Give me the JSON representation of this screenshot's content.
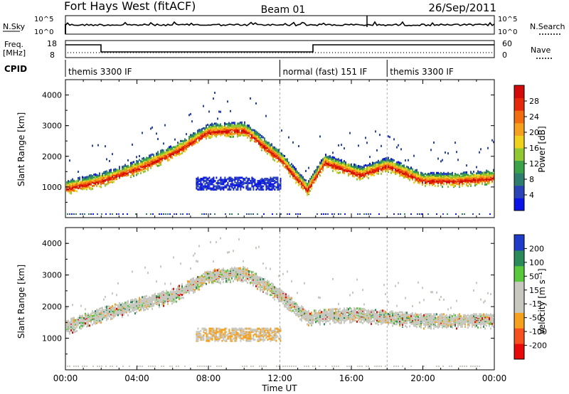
{
  "header": {
    "station": "Fort Hays West (fitACF)",
    "beam": "Beam 01",
    "date": "26/Sep/2011"
  },
  "noise_panel": {
    "left_label": "N.Sky",
    "right_label": "N.Search",
    "left_ticks": [
      "10^5",
      "10^0"
    ],
    "right_ticks": [
      "10^5",
      "10^0"
    ]
  },
  "freq_panel": {
    "left_label_line1": "Freq.",
    "left_label_line2": "[MHz]",
    "right_label": "Nave",
    "left_ticks": [
      "18",
      "8"
    ],
    "right_ticks": [
      "60",
      "0"
    ]
  },
  "cpid": {
    "label": "CPID",
    "segments": [
      {
        "label": "themis 3300 IF",
        "start_hour": 0.0
      },
      {
        "label": "normal (fast) 151 IF",
        "start_hour": 12.0
      },
      {
        "label": "themis 3300 IF",
        "start_hour": 18.0
      }
    ]
  },
  "chart_data": [
    {
      "type": "heatmap",
      "name": "power",
      "ylabel": "Slant Range [km]",
      "ylim": [
        0,
        4500
      ],
      "yticks": [
        "1000",
        "2000",
        "3000",
        "4000"
      ],
      "xlim": [
        0,
        24
      ],
      "colorbar": {
        "label": "Power [dB]",
        "ticks": [
          "4",
          "8",
          "12",
          "16",
          "20",
          "24",
          "28"
        ],
        "colors": [
          "#0a14e6",
          "#2a44b8",
          "#2f7d6e",
          "#3ba24a",
          "#8fc832",
          "#f0d21e",
          "#f5a01e",
          "#f06e0f",
          "#e6280a",
          "#d20a0a"
        ]
      },
      "echo_band": [
        {
          "hour": 0.0,
          "range_km": 1050
        },
        {
          "hour": 2.0,
          "range_km": 1300
        },
        {
          "hour": 4.0,
          "range_km": 1700
        },
        {
          "hour": 6.0,
          "range_km": 2200
        },
        {
          "hour": 8.0,
          "range_km": 2900
        },
        {
          "hour": 10.0,
          "range_km": 2950
        },
        {
          "hour": 12.0,
          "range_km": 2000
        },
        {
          "hour": 13.5,
          "range_km": 1000
        },
        {
          "hour": 14.5,
          "range_km": 1900
        },
        {
          "hour": 16.5,
          "range_km": 1500
        },
        {
          "hour": 18.0,
          "range_km": 1800
        },
        {
          "hour": 20.0,
          "range_km": 1300
        },
        {
          "hour": 22.0,
          "range_km": 1300
        },
        {
          "hour": 24.0,
          "range_km": 1400
        }
      ]
    },
    {
      "type": "heatmap",
      "name": "velocity",
      "ylabel": "Slant Range [km]",
      "ylim": [
        0,
        4500
      ],
      "yticks": [
        "1000",
        "2000",
        "3000",
        "4000"
      ],
      "xlim": [
        0,
        24
      ],
      "xticks": [
        "00:00",
        "04:00",
        "08:00",
        "12:00",
        "16:00",
        "20:00",
        "00:00"
      ],
      "xlabel": "Time UT",
      "colorbar": {
        "label": "Velocity [m s⁻¹]",
        "ticks": [
          "-200",
          "-100",
          "-50",
          "-15",
          "15",
          "50",
          "100",
          "200"
        ],
        "colors": [
          "#e60a0a",
          "#f5501e",
          "#f5a01e",
          "#c8c8c0",
          "#c8c8c0",
          "#5ac83c",
          "#2a8a5a",
          "#1e3cc8"
        ]
      },
      "echo_band": [
        {
          "hour": 0.0,
          "range_km": 1400
        },
        {
          "hour": 2.0,
          "range_km": 1800
        },
        {
          "hour": 4.0,
          "range_km": 2100
        },
        {
          "hour": 6.0,
          "range_km": 2400
        },
        {
          "hour": 8.0,
          "range_km": 3000
        },
        {
          "hour": 10.0,
          "range_km": 3100
        },
        {
          "hour": 12.0,
          "range_km": 2400
        },
        {
          "hour": 13.5,
          "range_km": 1700
        },
        {
          "hour": 16.0,
          "range_km": 1800
        },
        {
          "hour": 18.0,
          "range_km": 1700
        },
        {
          "hour": 20.0,
          "range_km": 1600
        },
        {
          "hour": 22.0,
          "range_km": 1600
        },
        {
          "hour": 24.0,
          "range_km": 1600
        }
      ]
    }
  ]
}
